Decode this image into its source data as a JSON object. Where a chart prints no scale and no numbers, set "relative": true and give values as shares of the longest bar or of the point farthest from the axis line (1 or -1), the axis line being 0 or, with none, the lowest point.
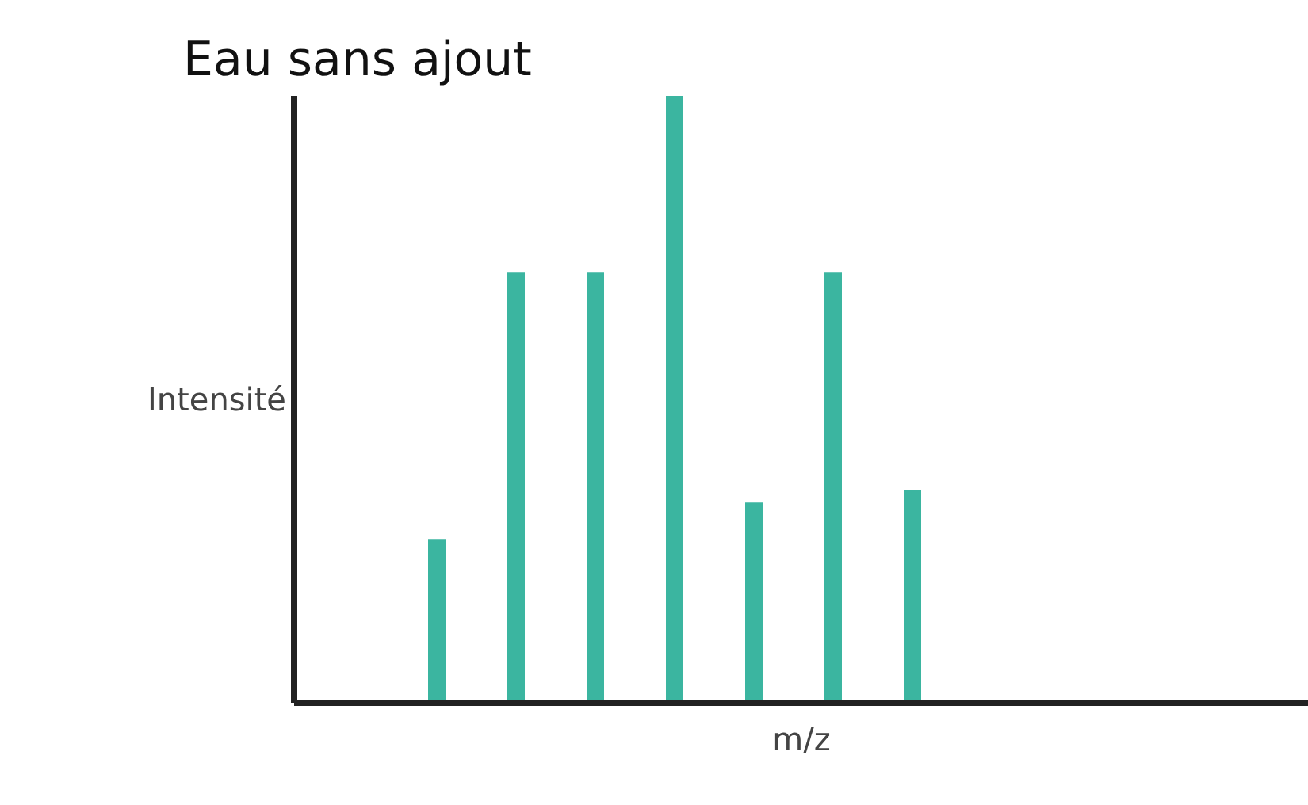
{
  "chart_data": {
    "type": "bar",
    "title": "Eau sans ajout",
    "xlabel": "m/z",
    "ylabel": "Intensité",
    "relative": true,
    "color": "#3bb5a0",
    "grid": false,
    "categories": [
      null,
      null,
      null,
      null,
      null,
      null,
      null
    ],
    "values": [
      0.27,
      0.71,
      0.71,
      1,
      0.33,
      0.71,
      0.35
    ]
  }
}
